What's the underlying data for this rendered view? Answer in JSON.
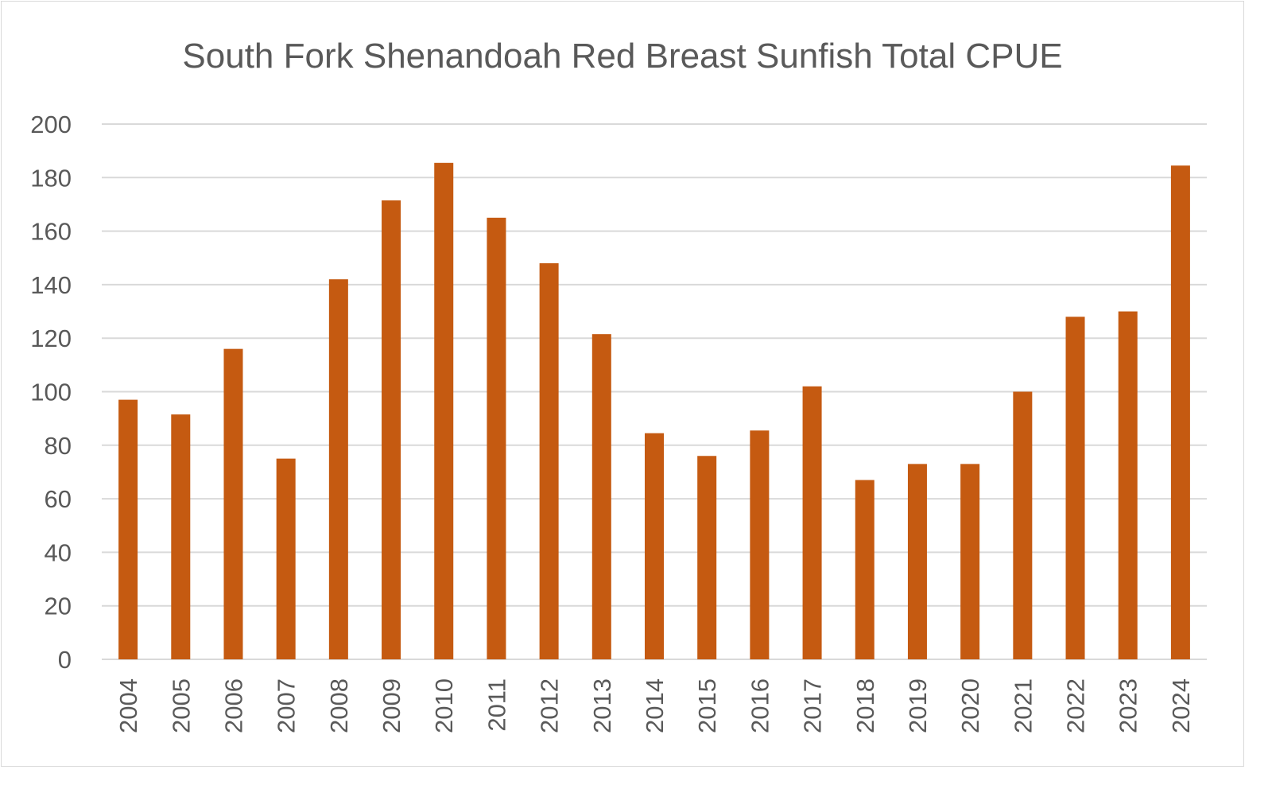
{
  "chart_data": {
    "type": "bar",
    "title": "South Fork Shenandoah Red Breast Sunfish Total CPUE",
    "xlabel": "",
    "ylabel": "",
    "categories": [
      "2004",
      "2005",
      "2006",
      "2007",
      "2008",
      "2009",
      "2010",
      "2011",
      "2012",
      "2013",
      "2014",
      "2015",
      "2016",
      "2017",
      "2018",
      "2019",
      "2020",
      "2021",
      "2022",
      "2023",
      "2024"
    ],
    "values": [
      97,
      91.5,
      116,
      75,
      142,
      171.5,
      185.5,
      165,
      148,
      121.5,
      84.5,
      76,
      85.5,
      102,
      67,
      73,
      73,
      100,
      128,
      130,
      184.5
    ],
    "ylim": [
      0,
      200
    ],
    "yticks": [
      0,
      20,
      40,
      60,
      80,
      100,
      120,
      140,
      160,
      180,
      200
    ],
    "grid": true,
    "legend": "none",
    "colors": {
      "bar": "#C55A11",
      "grid": "#D9D9D9",
      "text": "#595959"
    }
  }
}
